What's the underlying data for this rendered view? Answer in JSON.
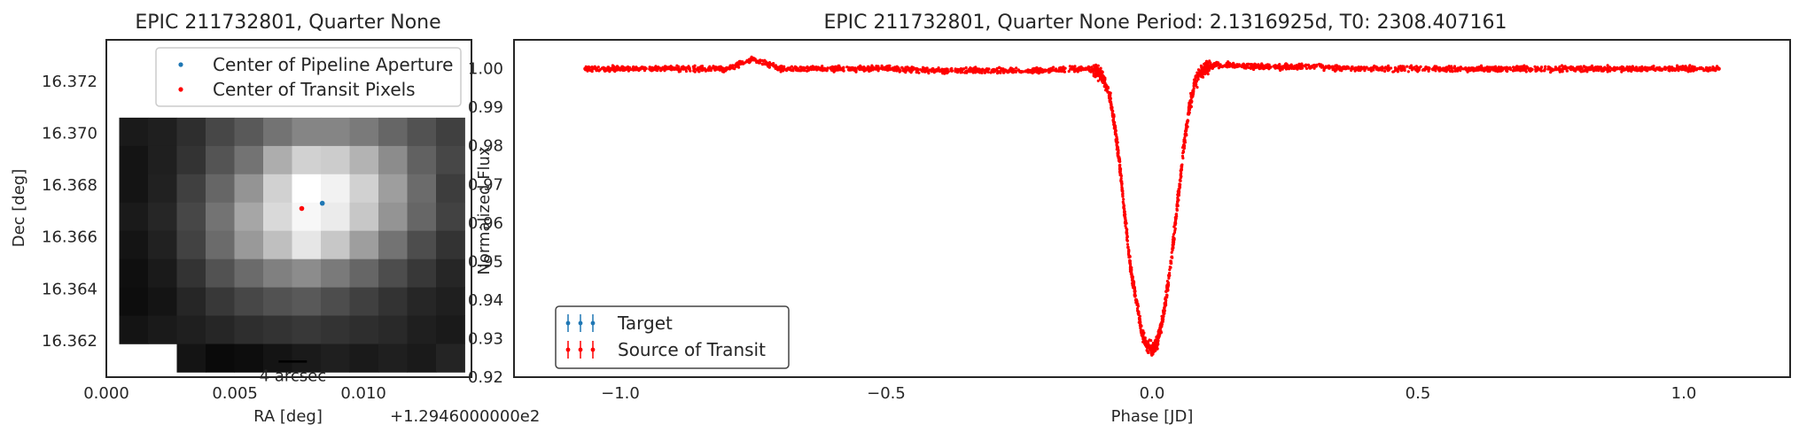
{
  "chart_data": [
    {
      "type": "heatmap",
      "title": "EPIC 211732801, Quarter None",
      "xlabel": "RA [deg]",
      "x_offset_label": "+1.2946000000e2",
      "ylabel": "Dec [deg]",
      "xlim": [
        0.0,
        0.0142
      ],
      "ylim": [
        16.3606,
        16.3736
      ],
      "x_ticks": [
        "0.000",
        "0.005",
        "0.010"
      ],
      "x_tick_values": [
        0.0,
        0.005,
        0.01
      ],
      "y_ticks": [
        "16.362",
        "16.364",
        "16.366",
        "16.368",
        "16.370",
        "16.372"
      ],
      "y_tick_values": [
        16.362,
        16.364,
        16.366,
        16.368,
        16.37,
        16.372
      ],
      "pixel_grid": {
        "x_start": 0.0005,
        "x_step": 0.00112,
        "y_top": 16.3706,
        "y_step": 0.00109,
        "missing_value": -1,
        "rows": [
          [
            0.1,
            0.12,
            0.18,
            0.28,
            0.35,
            0.45,
            0.52,
            0.52,
            0.48,
            0.4,
            0.32,
            0.25
          ],
          [
            0.08,
            0.12,
            0.2,
            0.33,
            0.45,
            0.68,
            0.82,
            0.8,
            0.7,
            0.55,
            0.38,
            0.28
          ],
          [
            0.08,
            0.13,
            0.25,
            0.4,
            0.58,
            0.82,
            1.0,
            0.95,
            0.82,
            0.62,
            0.42,
            0.24
          ],
          [
            0.1,
            0.15,
            0.28,
            0.45,
            0.65,
            0.85,
            0.97,
            0.92,
            0.78,
            0.58,
            0.4,
            0.26
          ],
          [
            0.08,
            0.13,
            0.26,
            0.42,
            0.6,
            0.75,
            0.9,
            0.78,
            0.62,
            0.45,
            0.3,
            0.2
          ],
          [
            0.06,
            0.1,
            0.2,
            0.32,
            0.42,
            0.5,
            0.55,
            0.48,
            0.4,
            0.3,
            0.22,
            0.15
          ],
          [
            0.05,
            0.08,
            0.15,
            0.22,
            0.28,
            0.32,
            0.35,
            0.3,
            0.25,
            0.2,
            0.15,
            0.12
          ],
          [
            0.08,
            0.1,
            0.12,
            0.15,
            0.18,
            0.2,
            0.22,
            0.2,
            0.18,
            0.16,
            0.12,
            0.1
          ],
          [
            -1,
            -1,
            0.08,
            0.04,
            0.05,
            0.08,
            0.1,
            0.12,
            0.1,
            0.12,
            0.1,
            0.14
          ]
        ]
      },
      "markers": [
        {
          "name": "Center of Pipeline Aperture",
          "x": 0.0084,
          "y": 16.3673,
          "color": "#1f77b4"
        },
        {
          "name": "Center of Transit Pixels",
          "x": 0.0076,
          "y": 16.3671,
          "color": "#ff0000"
        }
      ],
      "legend": {
        "placement": "top-right"
      },
      "scalebar": {
        "label": "4 arcsec",
        "x_start": 0.0067,
        "x_end": 0.0078,
        "y": 16.3612
      }
    },
    {
      "type": "scatter",
      "title": "EPIC 211732801, Quarter None Period: 2.1316925d, T0: 2308.407161",
      "xlabel": "Phase [JD]",
      "ylabel": "Normalized Flux",
      "xlim": [
        -1.2,
        1.2
      ],
      "ylim": [
        0.92,
        1.0075
      ],
      "x_ticks": [
        "−1.0",
        "−0.5",
        "0.0",
        "0.5",
        "1.0"
      ],
      "x_tick_values": [
        -1.0,
        -0.5,
        0.0,
        0.5,
        1.0
      ],
      "y_ticks": [
        "0.92",
        "0.93",
        "0.94",
        "0.95",
        "0.96",
        "0.97",
        "0.98",
        "0.99",
        "1.00"
      ],
      "y_tick_values": [
        0.92,
        0.93,
        0.94,
        0.95,
        0.96,
        0.97,
        0.98,
        0.99,
        1.0
      ],
      "series": [
        {
          "name": "Source of Transit",
          "color": "#ff0000",
          "x": [
            -1.066,
            -1.0,
            -0.9,
            -0.8,
            -0.75,
            -0.7,
            -0.6,
            -0.5,
            -0.4,
            -0.3,
            -0.2,
            -0.15,
            -0.12,
            -0.1,
            -0.09,
            -0.08,
            -0.07,
            -0.06,
            -0.05,
            -0.04,
            -0.03,
            -0.02,
            -0.01,
            0.0,
            0.01,
            0.02,
            0.03,
            0.04,
            0.05,
            0.06,
            0.07,
            0.08,
            0.09,
            0.1,
            0.12,
            0.15,
            0.2,
            0.3,
            0.4,
            0.5,
            0.6,
            0.7,
            0.8,
            0.9,
            1.0,
            1.066
          ],
          "y": [
            1.0,
            1.0,
            1.0,
            1.0,
            1.0025,
            1.0,
            1.0,
            1.0,
            0.9995,
            0.9995,
            0.9995,
            1.0,
            1.0,
            0.999,
            0.997,
            0.993,
            0.985,
            0.974,
            0.96,
            0.948,
            0.94,
            0.932,
            0.928,
            0.927,
            0.929,
            0.935,
            0.944,
            0.955,
            0.968,
            0.98,
            0.99,
            0.996,
            0.999,
            1.0,
            1.001,
            1.001,
            1.0005,
            1.0005,
            1.0,
            1.0,
            1.0,
            1.0,
            1.0,
            1.0,
            1.0,
            1.0
          ]
        },
        {
          "name": "Target",
          "color": "#1f77b4",
          "x": [],
          "y": []
        }
      ],
      "legend": {
        "placement": "bottom-left",
        "entries": [
          "Target",
          "Source of Transit"
        ]
      }
    }
  ]
}
